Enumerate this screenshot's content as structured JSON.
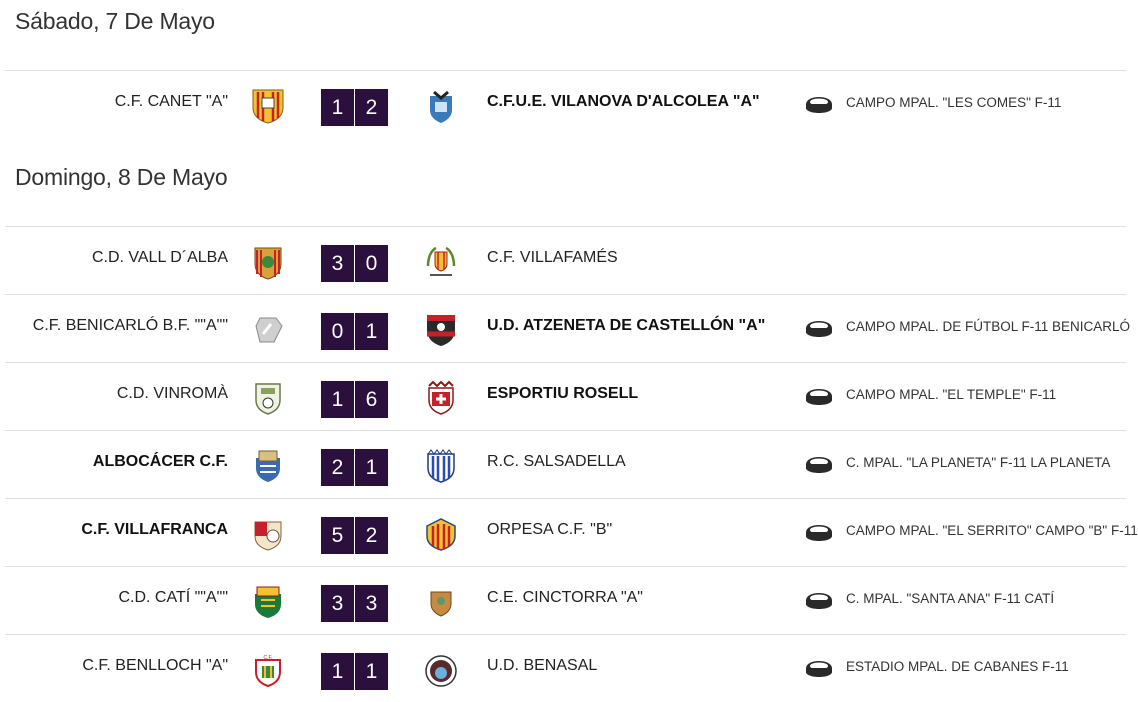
{
  "days": [
    {
      "title": "Sábado, 7 De Mayo",
      "matches": [
        {
          "home": "C.F. CANET \"A\"",
          "home_bold": false,
          "home_crest": "canet-crest",
          "score": [
            "1",
            "2"
          ],
          "away": "C.F.U.E. VILANOVA D'ALCOLEA \"A\"",
          "away_bold": true,
          "away_crest": "vilanova-crest",
          "venue": "CAMPO MPAL. \"LES COMES\" F-11"
        }
      ]
    },
    {
      "title": "Domingo, 8 De Mayo",
      "matches": [
        {
          "home": "C.D. VALL D´ALBA",
          "home_bold": false,
          "home_crest": "vall-dalba-crest",
          "score": [
            "3",
            "0"
          ],
          "away": "C.F. VILLAFAMÉS",
          "away_bold": false,
          "away_crest": "villafames-crest",
          "venue": ""
        },
        {
          "home": "C.F. BENICARLÓ B.F. \"\"A\"\"",
          "home_bold": false,
          "home_crest": "benicarlo-crest",
          "score": [
            "0",
            "1"
          ],
          "away": "U.D. ATZENETA DE CASTELLÓN \"A\"",
          "away_bold": true,
          "away_crest": "atzeneta-crest",
          "venue": "CAMPO MPAL. DE FÚTBOL F-11 BENICARLÓ"
        },
        {
          "home": "C.D. VINROMÀ",
          "home_bold": false,
          "home_crest": "vinroma-crest",
          "score": [
            "1",
            "6"
          ],
          "away": "ESPORTIU ROSELL",
          "away_bold": true,
          "away_crest": "rosell-crest",
          "venue": "CAMPO MPAL. \"EL TEMPLE\" F-11"
        },
        {
          "home": "ALBOCÁCER C.F.",
          "home_bold": true,
          "home_crest": "albocacer-crest",
          "score": [
            "2",
            "1"
          ],
          "away": "R.C. SALSADELLA",
          "away_bold": false,
          "away_crest": "salsadella-crest",
          "venue": "C. MPAL. \"LA PLANETA\" F-11 LA PLANETA"
        },
        {
          "home": "C.F. VILLAFRANCA",
          "home_bold": true,
          "home_crest": "villafranca-crest",
          "score": [
            "5",
            "2"
          ],
          "away": "ORPESA C.F. \"B\"",
          "away_bold": false,
          "away_crest": "orpesa-crest",
          "venue": "CAMPO MPAL. \"EL SERRITO\" CAMPO \"B\" F-11"
        },
        {
          "home": "C.D. CATÍ \"\"A\"\"",
          "home_bold": false,
          "home_crest": "cati-crest",
          "score": [
            "3",
            "3"
          ],
          "away": "C.E. CINCTORRA \"A\"",
          "away_bold": false,
          "away_crest": "cinctorra-crest",
          "venue": "C. MPAL. \"SANTA ANA\" F-11 CATÍ"
        },
        {
          "home": "C.F. BENLLOCH \"A\"",
          "home_bold": false,
          "home_crest": "benlloch-crest",
          "score": [
            "1",
            "1"
          ],
          "away": "U.D. BENASAL",
          "away_bold": false,
          "away_crest": "benasal-crest",
          "venue": "ESTADIO MPAL. DE CABANES F-11"
        }
      ]
    }
  ],
  "colors": {
    "score_bg": "#2b0f3d",
    "score_text": "#ffffff",
    "divider": "#dedede"
  },
  "icons": {
    "venue": "stadium-icon"
  }
}
